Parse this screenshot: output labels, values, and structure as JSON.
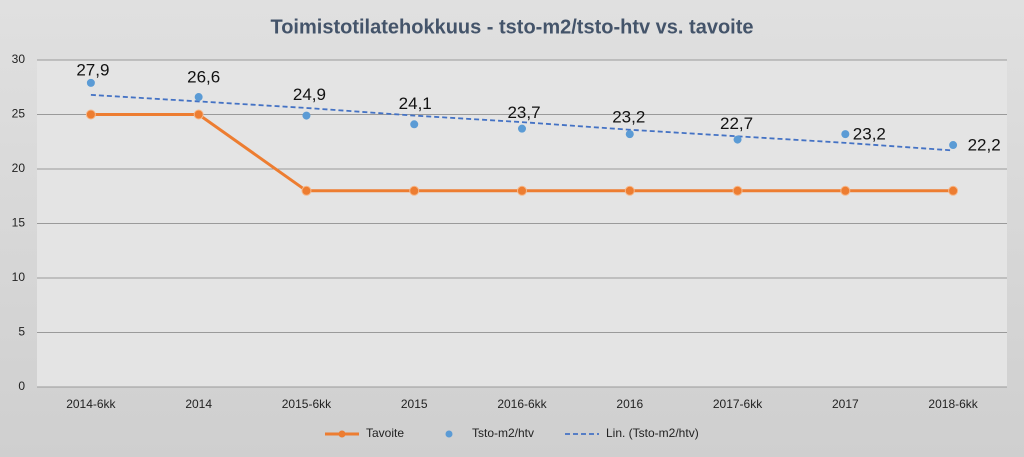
{
  "chart_data": {
    "type": "line",
    "title": "Toimistotilatehokkuus - tsto-m2/tsto-htv vs. tavoite",
    "categories": [
      "2014-6kk",
      "2014",
      "2015-6kk",
      "2015",
      "2016-6kk",
      "2016",
      "2017-6kk",
      "2017",
      "2018-6kk"
    ],
    "series": [
      {
        "name": "Tavoite",
        "color": "#ed7d31",
        "style": "line-markers",
        "values": [
          25,
          25,
          18,
          18,
          18,
          18,
          18,
          18,
          18
        ]
      },
      {
        "name": "Tsto-m2/htv",
        "color": "#5b9bd5",
        "style": "markers",
        "values": [
          27.9,
          26.6,
          24.9,
          24.1,
          23.7,
          23.2,
          22.7,
          23.2,
          22.2
        ],
        "value_labels": [
          "27,9",
          "26,6",
          "24,9",
          "24,1",
          "23,7",
          "23,2",
          "22,7",
          "23,2",
          "22,2"
        ]
      },
      {
        "name": "Lin. (Tsto-m2/htv)",
        "color": "#4472c4",
        "style": "dashed",
        "values": [
          26.8,
          26.2,
          25.6,
          24.9,
          24.3,
          23.6,
          23.0,
          22.4,
          21.7
        ]
      }
    ],
    "ylim": [
      0,
      30
    ],
    "yticks": [
      0,
      5,
      10,
      15,
      20,
      25,
      30
    ],
    "grid": true
  }
}
